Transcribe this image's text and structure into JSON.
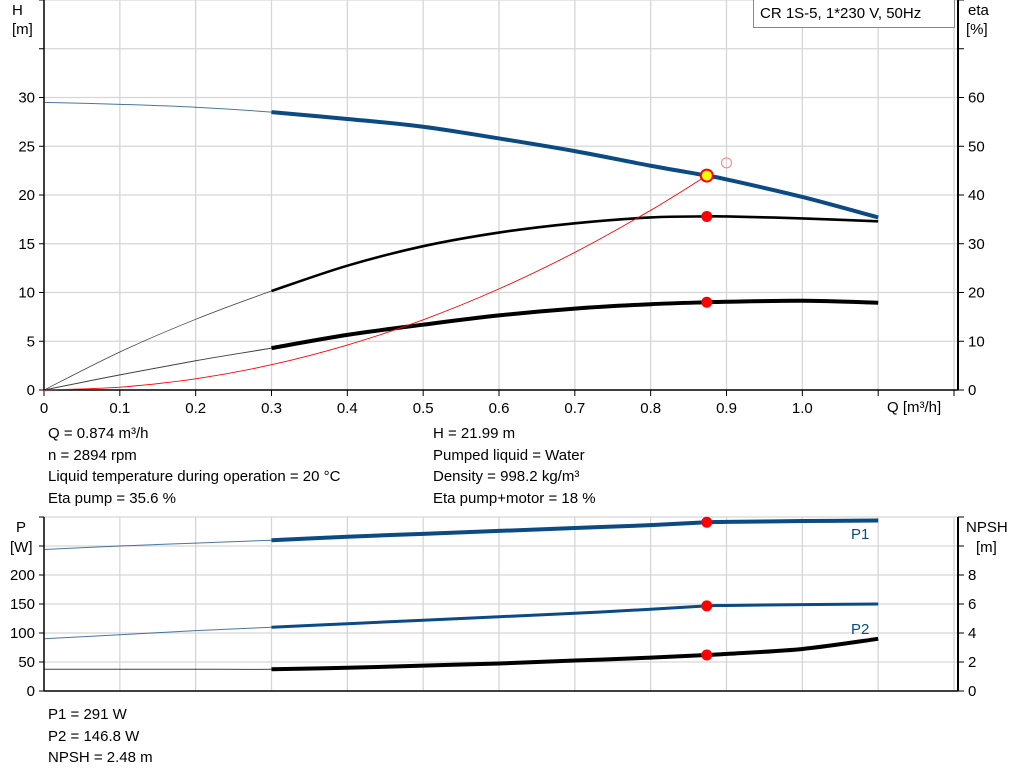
{
  "chart_data": [
    {
      "type": "line",
      "title": "CR 1S-5, 1*230 V, 50Hz",
      "xlabel": "Q [m³/h]",
      "ylabel": [
        "H",
        "[m]"
      ],
      "y2label": [
        "eta",
        "[%]"
      ],
      "xlim": [
        0,
        1.2
      ],
      "ylim": [
        0,
        40
      ],
      "y2lim": [
        0,
        80
      ],
      "grid": true,
      "x_ticks": [
        "0",
        "0.1",
        "0.2",
        "0.3",
        "0.4",
        "0.5",
        "0.6",
        "0.7",
        "0.8",
        "0.9",
        "1.0"
      ],
      "y_ticks": [
        "0",
        "5",
        "10",
        "15",
        "20",
        "25",
        "30"
      ],
      "y2_ticks": [
        "0",
        "10",
        "20",
        "30",
        "40",
        "50",
        "60"
      ],
      "x": [
        0,
        0.1,
        0.2,
        0.3,
        0.4,
        0.5,
        0.6,
        0.7,
        0.8,
        0.874,
        0.9,
        1.0,
        1.1
      ],
      "series": [
        {
          "key": "H",
          "axis": "left",
          "color": "#0b4a82",
          "values": [
            29.5,
            29.3,
            29.0,
            28.5,
            27.8,
            27.0,
            25.8,
            24.5,
            23.0,
            21.99,
            21.6,
            19.8,
            17.7
          ]
        },
        {
          "key": "eta_pump",
          "axis": "right",
          "color": "#000000",
          "values": [
            0,
            7.8,
            14.5,
            20.3,
            25.5,
            29.5,
            32.3,
            34.2,
            35.4,
            35.6,
            35.6,
            35.2,
            34.6
          ]
        },
        {
          "key": "eta_pump_motor",
          "axis": "right",
          "color": "#000000",
          "values": [
            0,
            3.1,
            6.0,
            8.6,
            11.3,
            13.4,
            15.3,
            16.7,
            17.6,
            18.0,
            18.1,
            18.3,
            17.9
          ]
        }
      ],
      "system_curve": {
        "color": "#ff0000",
        "x": [
          0,
          0.1,
          0.2,
          0.3,
          0.4,
          0.5,
          0.6,
          0.7,
          0.8,
          0.874
        ],
        "values": [
          0,
          0.29,
          1.15,
          2.59,
          4.61,
          7.2,
          10.37,
          14.11,
          18.43,
          21.99
        ]
      },
      "duty_point": {
        "Q": 0.874,
        "H": 21.99,
        "color": "#ffff00"
      },
      "requested_point": {
        "Q": 0.9,
        "H": 23.3
      },
      "operating_markers": [
        {
          "Q": 0.874,
          "eta": 35.6
        },
        {
          "Q": 0.874,
          "eta": 18
        }
      ],
      "marker_color": "#ff0000"
    },
    {
      "type": "line",
      "ylabel": [
        "P",
        "[W]"
      ],
      "y2label": [
        "NPSH",
        "[m]"
      ],
      "xlim": [
        0,
        1.2
      ],
      "ylim": [
        0,
        300
      ],
      "y2lim": [
        0,
        12
      ],
      "grid": true,
      "y_ticks": [
        "0",
        "50",
        "100",
        "150",
        "200"
      ],
      "y2_ticks": [
        "0",
        "2",
        "4",
        "6",
        "8"
      ],
      "x": [
        0,
        0.1,
        0.2,
        0.3,
        0.4,
        0.5,
        0.6,
        0.7,
        0.8,
        0.874,
        0.9,
        1.0,
        1.1
      ],
      "series": [
        {
          "name": "P1",
          "axis": "left",
          "color": "#0b4a82",
          "values": [
            244,
            250,
            255,
            260,
            266,
            271,
            276,
            281,
            286,
            291,
            291.5,
            293,
            294
          ]
        },
        {
          "name": "P2",
          "axis": "left",
          "color": "#0b4a82",
          "values": [
            90,
            97,
            104,
            110,
            116,
            122,
            128,
            134,
            141,
            146.8,
            147.5,
            149,
            150
          ]
        },
        {
          "key": "NPSH",
          "axis": "right",
          "color": "#000000",
          "values": [
            1.5,
            1.5,
            1.5,
            1.5,
            1.6,
            1.75,
            1.9,
            2.1,
            2.3,
            2.48,
            2.56,
            2.9,
            3.6
          ]
        }
      ],
      "operating_markers": [
        {
          "Q": 0.874,
          "P": 291
        },
        {
          "Q": 0.874,
          "P": 146.8
        },
        {
          "Q": 0.874,
          "NPSH": 2.48
        }
      ]
    }
  ],
  "operating_info": {
    "left": [
      "Q = 0.874 m³/h",
      "n = 2894 rpm",
      "Liquid temperature during operation = 20 °C",
      "Eta pump = 35.6 %"
    ],
    "right": [
      "H = 21.99 m",
      "Pumped liquid = Water",
      "Density = 998.2 kg/m³",
      "Eta pump+motor = 18 %"
    ]
  },
  "power_info": [
    "P1 = 291 W",
    "P2 = 146.8 W",
    "NPSH = 2.48 m"
  ]
}
